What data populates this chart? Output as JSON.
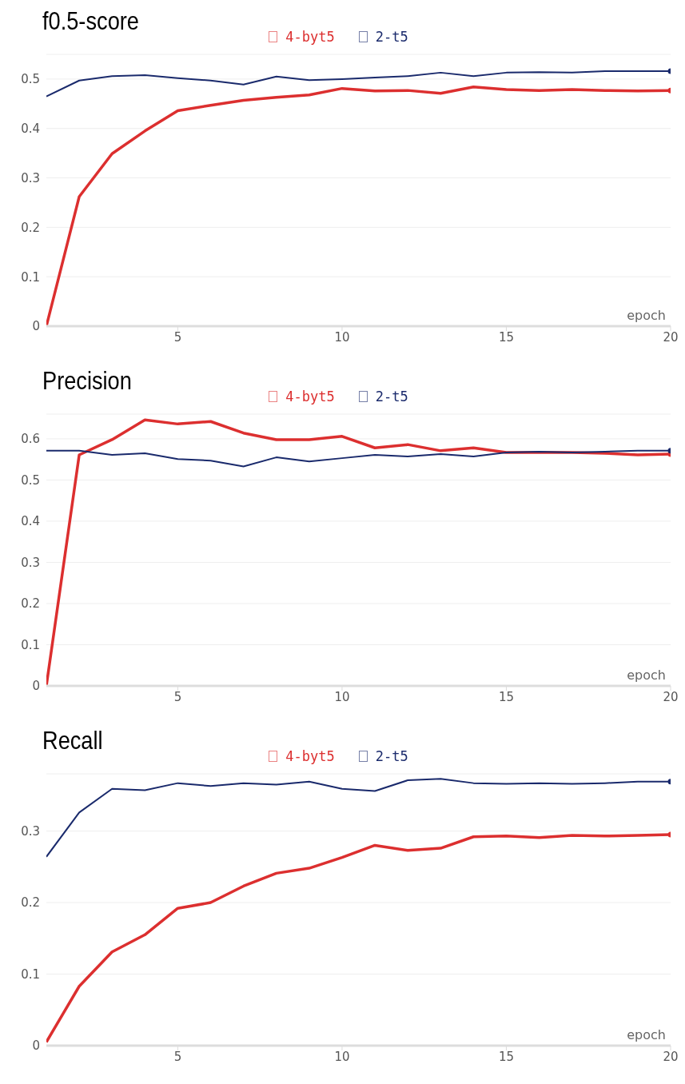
{
  "chart_data": [
    {
      "type": "line",
      "title": "f0.5-score",
      "xlabel": "epoch",
      "x": [
        1,
        2,
        3,
        4,
        5,
        6,
        7,
        8,
        9,
        10,
        11,
        12,
        13,
        14,
        15,
        16,
        17,
        18,
        19,
        20
      ],
      "xlim": [
        1,
        20
      ],
      "xticks": [
        5,
        10,
        15,
        20
      ],
      "ylim": [
        0,
        0.55
      ],
      "yticks": [
        0,
        0.1,
        0.2,
        0.3,
        0.4,
        0.5
      ],
      "grid": "y",
      "legend": "top",
      "series": [
        {
          "name": "4-byt5",
          "color": "#dc2f2f",
          "values": [
            0,
            0.262,
            0.349,
            0.395,
            0.436,
            0.447,
            0.457,
            0.463,
            0.468,
            0.481,
            0.476,
            0.477,
            0.471,
            0.484,
            0.479,
            0.477,
            0.479,
            0.477,
            0.476,
            0.477
          ]
        },
        {
          "name": "2-t5",
          "color": "#1a2a6c",
          "values": [
            0.465,
            0.497,
            0.506,
            0.508,
            0.502,
            0.497,
            0.489,
            0.505,
            0.498,
            0.5,
            0.503,
            0.506,
            0.513,
            0.506,
            0.513,
            0.514,
            0.513,
            0.516,
            0.516,
            0.516
          ]
        }
      ]
    },
    {
      "type": "line",
      "title": "Precision",
      "xlabel": "epoch",
      "x": [
        1,
        2,
        3,
        4,
        5,
        6,
        7,
        8,
        9,
        10,
        11,
        12,
        13,
        14,
        15,
        16,
        17,
        18,
        19,
        20
      ],
      "xlim": [
        1,
        20
      ],
      "xticks": [
        5,
        10,
        15,
        20
      ],
      "ylim": [
        0,
        0.66
      ],
      "yticks": [
        0,
        0.1,
        0.2,
        0.3,
        0.4,
        0.5,
        0.6
      ],
      "grid": "y",
      "legend": "top",
      "series": [
        {
          "name": "4-byt5",
          "color": "#dc2f2f",
          "values": [
            0,
            0.561,
            0.598,
            0.646,
            0.636,
            0.642,
            0.614,
            0.598,
            0.598,
            0.606,
            0.578,
            0.586,
            0.571,
            0.578,
            0.567,
            0.567,
            0.567,
            0.565,
            0.561,
            0.563
          ]
        },
        {
          "name": "2-t5",
          "color": "#1a2a6c",
          "values": [
            0.571,
            0.571,
            0.561,
            0.565,
            0.551,
            0.547,
            0.533,
            0.555,
            0.545,
            0.553,
            0.561,
            0.557,
            0.563,
            0.557,
            0.567,
            0.569,
            0.567,
            0.569,
            0.571,
            0.571
          ]
        }
      ]
    },
    {
      "type": "line",
      "title": "Recall",
      "xlabel": "epoch",
      "x": [
        1,
        2,
        3,
        4,
        5,
        6,
        7,
        8,
        9,
        10,
        11,
        12,
        13,
        14,
        15,
        16,
        17,
        18,
        19,
        20
      ],
      "xlim": [
        1,
        20
      ],
      "xticks": [
        5,
        10,
        15,
        20
      ],
      "ylim": [
        0,
        0.38
      ],
      "yticks": [
        0,
        0.1,
        0.2,
        0.3
      ],
      "grid": "y",
      "legend": "top",
      "series": [
        {
          "name": "4-byt5",
          "color": "#dc2f2f",
          "values": [
            0.005,
            0.083,
            0.131,
            0.155,
            0.192,
            0.2,
            0.223,
            0.241,
            0.248,
            0.263,
            0.28,
            0.273,
            0.276,
            0.292,
            0.293,
            0.291,
            0.294,
            0.293,
            0.294,
            0.295
          ]
        },
        {
          "name": "2-t5",
          "color": "#1a2a6c",
          "values": [
            0.264,
            0.326,
            0.359,
            0.357,
            0.367,
            0.363,
            0.367,
            0.365,
            0.369,
            0.359,
            0.356,
            0.371,
            0.373,
            0.367,
            0.366,
            0.367,
            0.366,
            0.367,
            0.369,
            0.369
          ]
        }
      ]
    }
  ]
}
